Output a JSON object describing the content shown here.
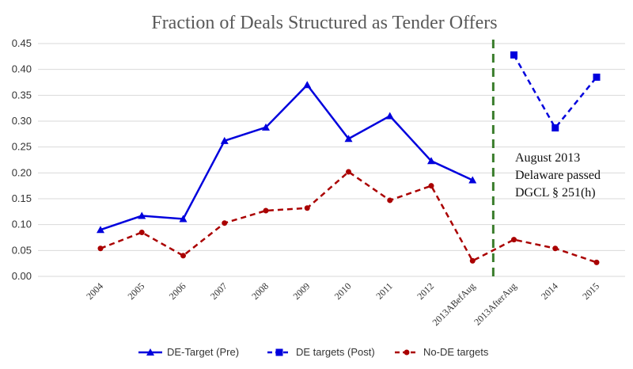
{
  "chart_data": {
    "type": "line",
    "title": "Fraction of Deals Structured as Tender Offers",
    "xlabel": "",
    "ylabel": "",
    "categories": [
      "2004",
      "2005",
      "2006",
      "2007",
      "2008",
      "2009",
      "2010",
      "2011",
      "2012",
      "2013ABefAug",
      "2013AfterAug",
      "2014",
      "2015"
    ],
    "ylim": [
      0,
      0.45
    ],
    "yticks": [
      "0.00",
      "0.05",
      "0.10",
      "0.15",
      "0.20",
      "0.25",
      "0.30",
      "0.35",
      "0.40",
      "0.45"
    ],
    "grid": true,
    "legend_position": "bottom",
    "series": [
      {
        "name": "DE-Target (Pre)",
        "color": "#0000dd",
        "marker": "triangle",
        "dash": false,
        "values": [
          0.09,
          0.117,
          0.111,
          0.262,
          0.288,
          0.37,
          0.266,
          0.31,
          0.223,
          0.186,
          null,
          null,
          null
        ]
      },
      {
        "name": "DE targets (Post)",
        "color": "#0000dd",
        "marker": "square",
        "dash": true,
        "values": [
          null,
          null,
          null,
          null,
          null,
          null,
          null,
          null,
          null,
          null,
          0.428,
          0.287,
          0.385
        ]
      },
      {
        "name": "No-DE targets",
        "color": "#aa0000",
        "marker": "circle",
        "dash": true,
        "values": [
          0.054,
          0.085,
          0.04,
          0.103,
          0.127,
          0.132,
          0.202,
          0.147,
          0.175,
          0.03,
          0.071,
          0.054,
          0.027
        ]
      }
    ],
    "vline": {
      "between": [
        "2013ABefAug",
        "2013AfterAug"
      ],
      "color": "#3a7d2c"
    },
    "annotation": [
      "August 2013",
      "Delaware passed",
      "DGCL § 251(h)"
    ]
  }
}
